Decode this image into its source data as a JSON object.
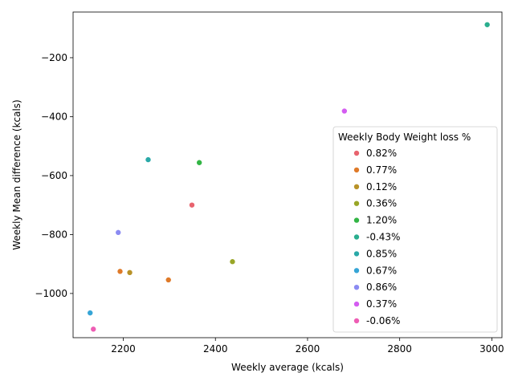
{
  "chart_data": {
    "type": "scatter",
    "title": "",
    "xlabel": "Weekly average (kcals)",
    "ylabel": "Weekly Mean difference (kcals)",
    "xlim": [
      2091,
      3022
    ],
    "ylim": [
      -1150,
      -45
    ],
    "xticks": [
      2200,
      2400,
      2600,
      2800,
      3000
    ],
    "yticks": [
      -1000,
      -800,
      -600,
      -400,
      -200
    ],
    "xtick_labels": [
      "2200",
      "2400",
      "2600",
      "2800",
      "3000"
    ],
    "ytick_labels": [
      "−1000",
      "−800",
      "−600",
      "−400",
      "−200"
    ],
    "grid": false,
    "legend": {
      "title": "Weekly Body Weight loss %",
      "placement": "right"
    },
    "series": [
      {
        "name": "0.82%",
        "color": "#e8636e",
        "points": [
          [
            2349,
            -700
          ]
        ]
      },
      {
        "name": "0.77%",
        "color": "#df7a29",
        "points": [
          [
            2193,
            -925
          ],
          [
            2298,
            -954
          ]
        ]
      },
      {
        "name": "0.12%",
        "color": "#b89228",
        "points": [
          [
            2214,
            -929
          ]
        ]
      },
      {
        "name": "0.36%",
        "color": "#99a627",
        "points": [
          [
            2437,
            -892
          ]
        ]
      },
      {
        "name": "1.20%",
        "color": "#33b545",
        "points": [
          [
            2365,
            -556
          ]
        ]
      },
      {
        "name": "-0.43%",
        "color": "#2aae8e",
        "points": [
          [
            2990,
            -88
          ]
        ]
      },
      {
        "name": "0.85%",
        "color": "#2aa9a8",
        "points": [
          [
            2254,
            -546
          ]
        ]
      },
      {
        "name": "0.67%",
        "color": "#36a5d6",
        "points": [
          [
            2128,
            -1066
          ]
        ]
      },
      {
        "name": "0.86%",
        "color": "#8b8bf2",
        "points": [
          [
            2189,
            -793
          ]
        ]
      },
      {
        "name": "0.37%",
        "color": "#d45cf1",
        "points": [
          [
            2680,
            -381
          ]
        ]
      },
      {
        "name": "-0.06%",
        "color": "#ee5db4",
        "points": [
          [
            2135,
            -1121
          ]
        ]
      }
    ]
  }
}
